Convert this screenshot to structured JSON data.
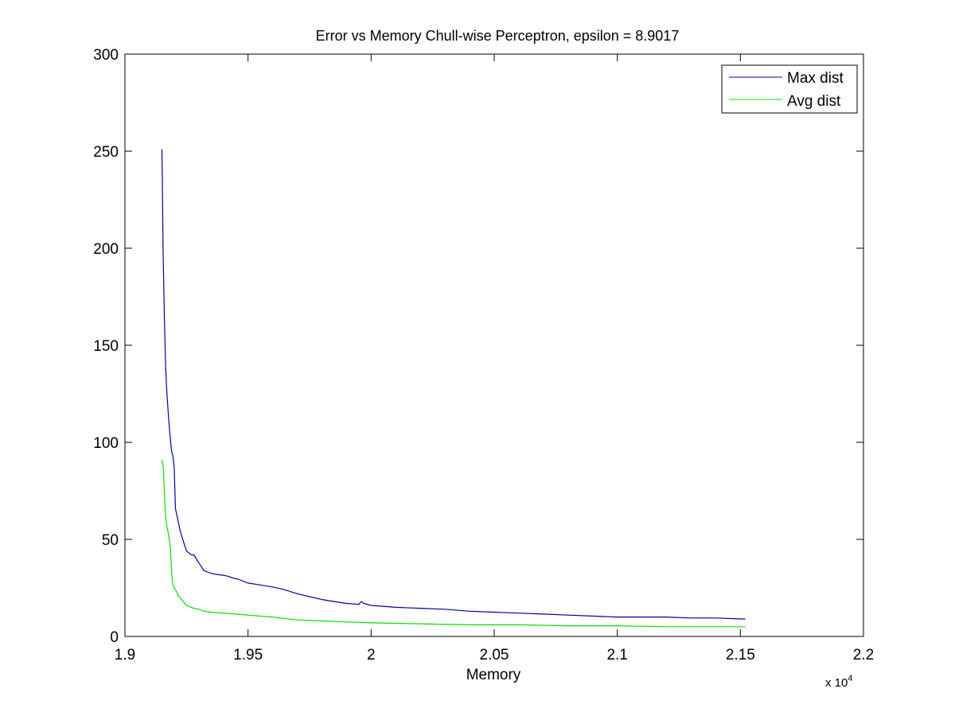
{
  "chart_data": {
    "type": "line",
    "title": "Error vs Memory Chull-wise Perceptron, epsilon = 8.9017",
    "xlabel": "Memory",
    "ylabel": "",
    "x_multiplier_label": "x 10",
    "x_multiplier_exponent": "4",
    "xlim": [
      1.9,
      2.2
    ],
    "ylim": [
      0,
      300
    ],
    "x_ticks": [
      1.9,
      1.95,
      2.0,
      2.05,
      2.1,
      2.15,
      2.2
    ],
    "x_tick_labels": [
      "1.9",
      "1.95",
      "2",
      "2.05",
      "2.1",
      "2.15",
      "2.2"
    ],
    "y_ticks": [
      0,
      50,
      100,
      150,
      200,
      250,
      300
    ],
    "y_tick_labels": [
      "0",
      "50",
      "100",
      "150",
      "200",
      "250",
      "300"
    ],
    "grid": false,
    "legend_position": "top-right",
    "series": [
      {
        "name": "Max dist",
        "color": "#0000a0",
        "x": [
          1.915,
          1.9152,
          1.9155,
          1.916,
          1.9165,
          1.917,
          1.9175,
          1.918,
          1.9185,
          1.919,
          1.9195,
          1.92,
          1.9205,
          1.921,
          1.9215,
          1.922,
          1.9225,
          1.923,
          1.9235,
          1.924,
          1.9245,
          1.925,
          1.926,
          1.927,
          1.928,
          1.929,
          1.93,
          1.931,
          1.932,
          1.933,
          1.934,
          1.935,
          1.937,
          1.94,
          1.942,
          1.944,
          1.946,
          1.948,
          1.95,
          1.955,
          1.96,
          1.965,
          1.97,
          1.975,
          1.98,
          1.985,
          1.99,
          1.995,
          1.996,
          1.997,
          2.0,
          2.01,
          2.02,
          2.03,
          2.04,
          2.05,
          2.06,
          2.07,
          2.08,
          2.09,
          2.1,
          2.11,
          2.12,
          2.13,
          2.14,
          2.15,
          2.152
        ],
        "values": [
          251,
          235,
          200,
          165,
          140,
          126,
          117,
          108,
          101,
          95,
          93,
          87,
          66,
          63,
          60,
          57,
          54,
          52,
          50,
          48,
          46,
          44,
          43,
          42,
          42,
          40,
          38,
          36,
          34,
          33.5,
          33,
          32.5,
          32,
          31.5,
          31,
          30,
          29.5,
          28.5,
          27.5,
          26.5,
          25.5,
          24,
          22,
          20.5,
          19,
          18,
          17,
          16.5,
          18,
          17,
          16,
          15,
          14.5,
          14,
          13,
          12.5,
          12,
          11.5,
          11,
          10.5,
          10,
          10,
          10,
          9.5,
          9.5,
          9,
          9
        ]
      },
      {
        "name": "Avg dist",
        "color": "#00e000",
        "x": [
          1.915,
          1.9155,
          1.916,
          1.9165,
          1.917,
          1.9175,
          1.918,
          1.9185,
          1.919,
          1.9195,
          1.92,
          1.9205,
          1.921,
          1.9215,
          1.922,
          1.923,
          1.924,
          1.925,
          1.926,
          1.927,
          1.928,
          1.93,
          1.932,
          1.935,
          1.94,
          1.945,
          1.95,
          1.96,
          1.97,
          1.98,
          1.99,
          2.0,
          2.02,
          2.04,
          2.06,
          2.08,
          2.1,
          2.12,
          2.14,
          2.152
        ],
        "values": [
          91,
          88,
          75,
          62,
          57,
          54,
          50,
          45,
          32,
          27,
          25,
          24,
          23,
          21.5,
          20.5,
          19,
          17.5,
          16,
          15.5,
          15,
          14.5,
          14,
          13,
          12.5,
          12,
          11.5,
          11,
          10,
          8.5,
          8,
          7.5,
          7,
          6.5,
          6,
          6,
          5.5,
          5.5,
          5,
          5,
          5
        ]
      }
    ]
  }
}
